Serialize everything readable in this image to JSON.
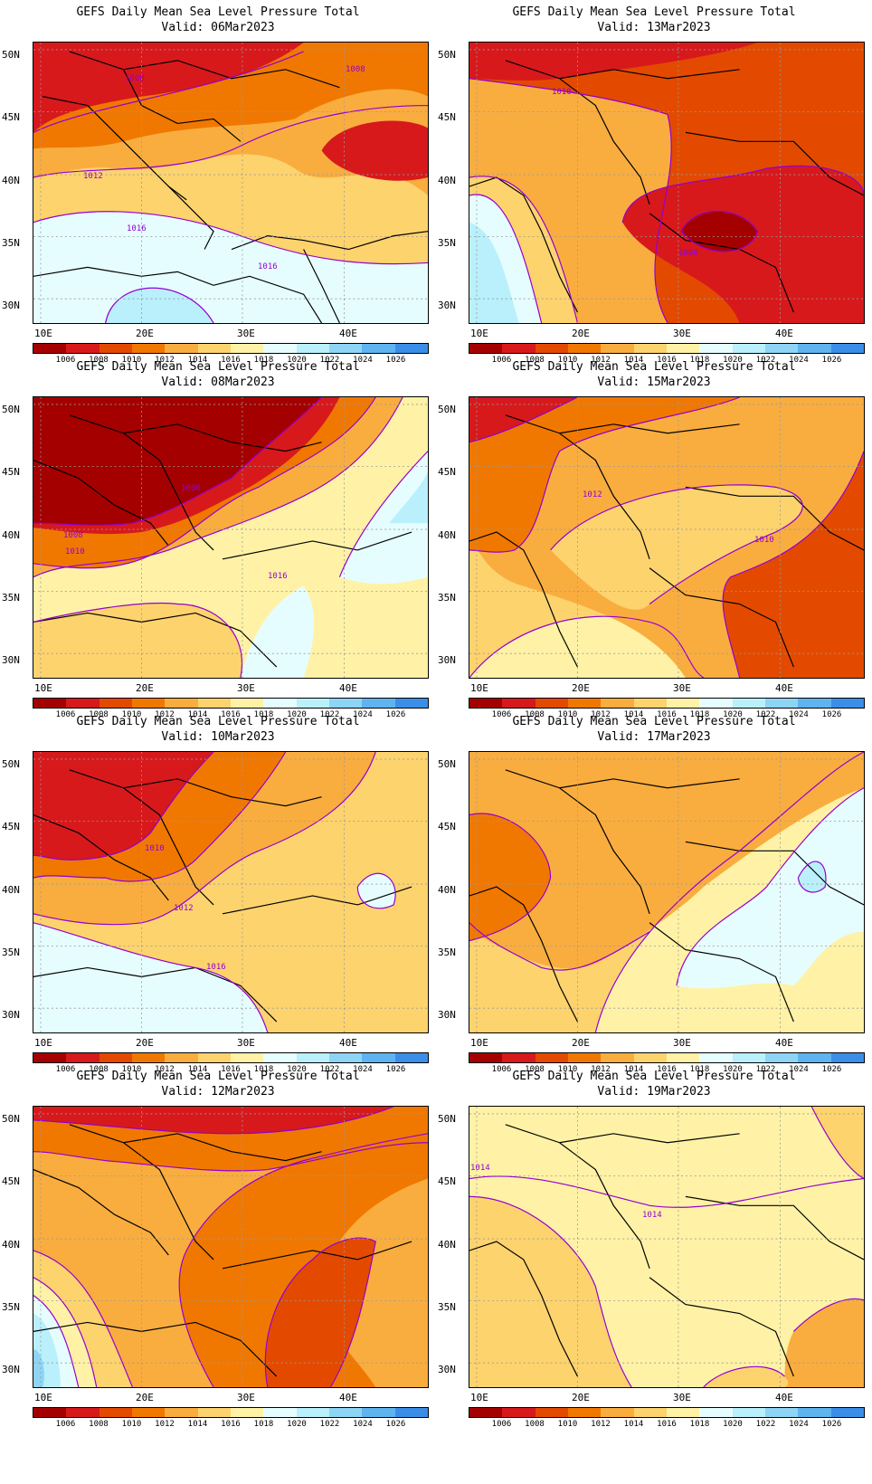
{
  "colorbar": {
    "labels": [
      "1006",
      "1008",
      "1010",
      "1012",
      "1014",
      "1016",
      "1018",
      "1020",
      "1022",
      "1024",
      "1026"
    ],
    "colors": [
      "#a50000",
      "#d7191c",
      "#e34a00",
      "#f07800",
      "#f9ad3f",
      "#fdd36e",
      "#fff2a6",
      "#e6fdff",
      "#b9f0fb",
      "#8ed4f5",
      "#5fb4f0",
      "#3b8ee8"
    ]
  },
  "axes": {
    "lat_labels": [
      "50N",
      "45N",
      "40N",
      "35N",
      "30N"
    ],
    "lon_labels": [
      "10E",
      "20E",
      "30E",
      "40E"
    ]
  },
  "panels": [
    {
      "title": "GEFS Daily Mean Sea Level Pressure Total",
      "valid": "Valid: 06Mar2023",
      "contour_labels": [
        "1008",
        "1008",
        "1012",
        "1016",
        "1016"
      ]
    },
    {
      "title": "GEFS Daily Mean Sea Level Pressure Total",
      "valid": "Valid: 13Mar2023",
      "contour_labels": [
        "1010",
        "1006"
      ]
    },
    {
      "title": "GEFS Daily Mean Sea Level Pressure Total",
      "valid": "Valid: 08Mar2023",
      "contour_labels": [
        "1006",
        "1008",
        "1010",
        "1016"
      ]
    },
    {
      "title": "GEFS Daily Mean Sea Level Pressure Total",
      "valid": "Valid: 15Mar2023",
      "contour_labels": [
        "1012",
        "1010"
      ]
    },
    {
      "title": "GEFS Daily Mean Sea Level Pressure Total",
      "valid": "Valid: 10Mar2023",
      "contour_labels": [
        "1010",
        "1012",
        "1016"
      ]
    },
    {
      "title": "GEFS Daily Mean Sea Level Pressure Total",
      "valid": "Valid: 17Mar2023",
      "contour_labels": []
    },
    {
      "title": "GEFS Daily Mean Sea Level Pressure Total",
      "valid": "Valid: 12Mar2023",
      "contour_labels": []
    },
    {
      "title": "GEFS Daily Mean Sea Level Pressure Total",
      "valid": "Valid: 19Mar2023",
      "contour_labels": [
        "1014",
        "1014"
      ]
    }
  ]
}
